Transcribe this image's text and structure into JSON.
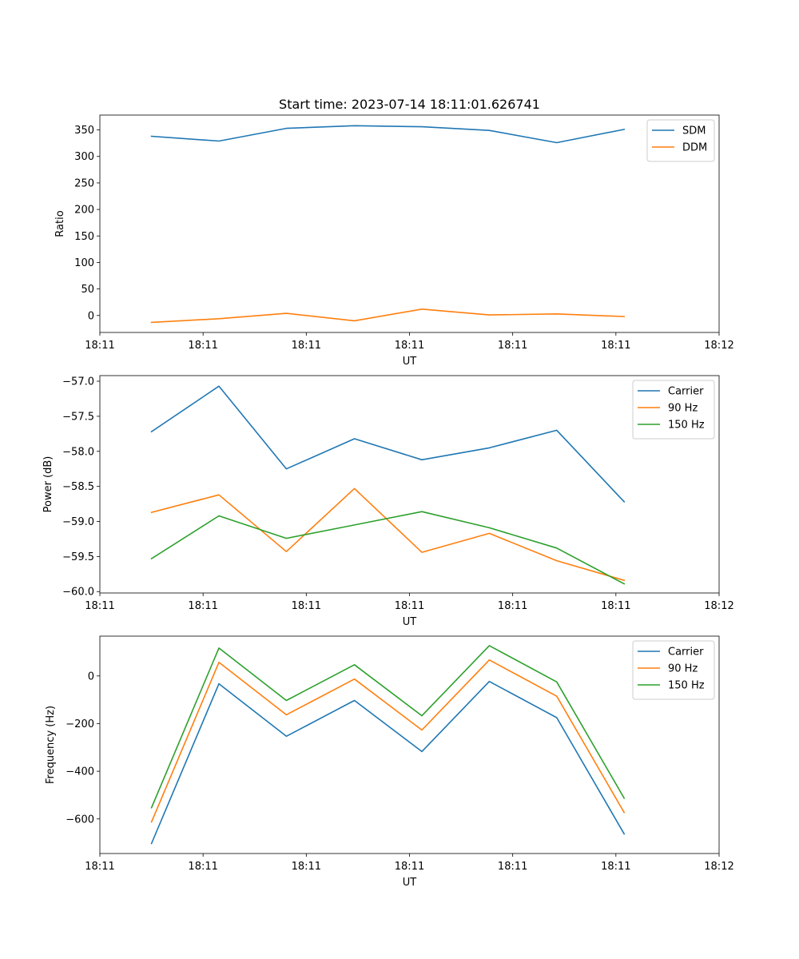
{
  "colors": {
    "series1": "#1f77b4",
    "series2": "#ff7f0e",
    "series3": "#2ca02c"
  },
  "chart_data": [
    {
      "type": "line",
      "title": "Start time: 2023-07-14 18:11:01.626741",
      "xlabel": "UT",
      "ylabel": "Ratio",
      "xlim": [
        0,
        9
      ],
      "x_tick_values": [
        0,
        1.5,
        3,
        4.5,
        6,
        7.5,
        9
      ],
      "x_tick_labels": [
        "18:11",
        "18:11",
        "18:11",
        "18:11",
        "18:11",
        "18:11",
        "18:12"
      ],
      "ylim": [
        -32,
        378
      ],
      "y_ticks": [
        0,
        50,
        100,
        150,
        200,
        250,
        300,
        350
      ],
      "y_tick_labels": [
        "0",
        "50",
        "100",
        "150",
        "200",
        "250",
        "300",
        "350"
      ],
      "legend": "top-right",
      "x": [
        0.75,
        1.73,
        2.71,
        3.7,
        4.68,
        5.66,
        6.64,
        7.62
      ],
      "series": [
        {
          "name": "SDM",
          "color": "#1f77b4",
          "values": [
            338,
            329,
            353,
            358,
            356,
            349,
            326,
            351
          ]
        },
        {
          "name": "DDM",
          "color": "#ff7f0e",
          "values": [
            -13,
            -6,
            4,
            -10,
            12,
            1,
            3,
            -2
          ]
        }
      ]
    },
    {
      "type": "line",
      "title": "",
      "xlabel": "UT",
      "ylabel": "Power (dB)",
      "xlim": [
        0,
        9
      ],
      "x_tick_values": [
        0,
        1.5,
        3,
        4.5,
        6,
        7.5,
        9
      ],
      "x_tick_labels": [
        "18:11",
        "18:11",
        "18:11",
        "18:11",
        "18:11",
        "18:11",
        "18:12"
      ],
      "ylim": [
        -60.02,
        -56.92
      ],
      "y_ticks": [
        -60.0,
        -59.5,
        -59.0,
        -58.5,
        -58.0,
        -57.5,
        -57.0
      ],
      "y_tick_labels": [
        "−60.0",
        "−59.5",
        "−59.0",
        "−58.5",
        "−58.0",
        "−57.5",
        "−57.0"
      ],
      "legend": "top-right",
      "x": [
        0.75,
        1.73,
        2.71,
        3.7,
        4.68,
        5.66,
        6.64,
        7.62
      ],
      "series": [
        {
          "name": "Carrier",
          "color": "#1f77b4",
          "values": [
            -57.72,
            -57.07,
            -58.25,
            -57.82,
            -58.12,
            -57.95,
            -57.7,
            -58.72
          ]
        },
        {
          "name": "90 Hz",
          "color": "#ff7f0e",
          "values": [
            -58.87,
            -58.62,
            -59.43,
            -58.53,
            -59.44,
            -59.17,
            -59.56,
            -59.84
          ]
        },
        {
          "name": "150 Hz",
          "color": "#2ca02c",
          "values": [
            -59.53,
            -58.92,
            -59.24,
            -59.05,
            -58.86,
            -59.09,
            -59.38,
            -59.89
          ]
        }
      ]
    },
    {
      "type": "line",
      "title": "",
      "xlabel": "UT",
      "ylabel": "Frequency (Hz)",
      "xlim": [
        0,
        9
      ],
      "x_tick_values": [
        0,
        1.5,
        3,
        4.5,
        6,
        7.5,
        9
      ],
      "x_tick_labels": [
        "18:11",
        "18:11",
        "18:11",
        "18:11",
        "18:11",
        "18:11",
        "18:12"
      ],
      "ylim": [
        -745,
        167
      ],
      "y_ticks": [
        -600,
        -400,
        -200,
        0
      ],
      "y_tick_labels": [
        "−600",
        "−400",
        "−200",
        "0"
      ],
      "legend": "top-right",
      "x": [
        0.75,
        1.73,
        2.71,
        3.7,
        4.68,
        5.66,
        6.64,
        7.62
      ],
      "series": [
        {
          "name": "Carrier",
          "color": "#1f77b4",
          "values": [
            -703,
            -33,
            -253,
            -103,
            -317,
            -23,
            -175,
            -663
          ]
        },
        {
          "name": "90 Hz",
          "color": "#ff7f0e",
          "values": [
            -613,
            57,
            -163,
            -13,
            -227,
            67,
            -85,
            -573
          ]
        },
        {
          "name": "150 Hz",
          "color": "#2ca02c",
          "values": [
            -553,
            117,
            -103,
            47,
            -167,
            127,
            -25,
            -513
          ]
        }
      ]
    }
  ]
}
